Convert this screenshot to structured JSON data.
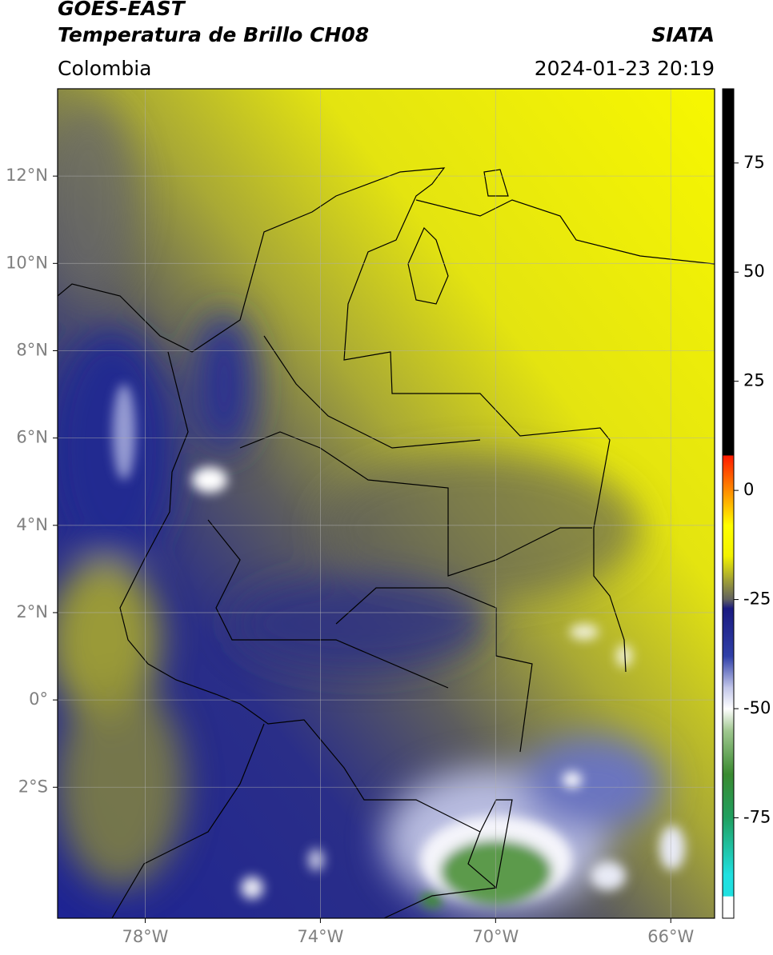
{
  "header": {
    "title": "GOES-EAST",
    "subtitle": "Temperatura de Brillo CH08",
    "region": "Colombia",
    "source": "SIATA",
    "datetime": "2024-01-23 20:19"
  },
  "map": {
    "type": "map",
    "xlim": [
      -80,
      -65
    ],
    "ylim": [
      -5,
      14
    ],
    "grid": true,
    "xticks": [
      {
        "value": -78,
        "label": "78°W"
      },
      {
        "value": -74,
        "label": "74°W"
      },
      {
        "value": -70,
        "label": "70°W"
      },
      {
        "value": -66,
        "label": "66°W"
      }
    ],
    "yticks": [
      {
        "value": 12,
        "label": "12°N"
      },
      {
        "value": 10,
        "label": "10°N"
      },
      {
        "value": 8,
        "label": "8°N"
      },
      {
        "value": 6,
        "label": "6°N"
      },
      {
        "value": 4,
        "label": "4°N"
      },
      {
        "value": 2,
        "label": "2°N"
      },
      {
        "value": 0,
        "label": "0°"
      },
      {
        "value": -2,
        "label": "2°S"
      }
    ]
  },
  "colorbar": {
    "lim": [
      -98,
      92
    ],
    "ticks": [
      75,
      50,
      25,
      0,
      -25,
      -50,
      -75
    ],
    "colormap": [
      {
        "value": 92,
        "color": "#000000"
      },
      {
        "value": 8,
        "color": "#000000"
      },
      {
        "value": 8,
        "color": "#ff1a00"
      },
      {
        "value": 0,
        "color": "#ff8c00"
      },
      {
        "value": -8,
        "color": "#ffff00"
      },
      {
        "value": -15,
        "color": "#f2f200"
      },
      {
        "value": -20,
        "color": "#a8a830"
      },
      {
        "value": -25,
        "color": "#606060"
      },
      {
        "value": -27,
        "color": "#1a1a80"
      },
      {
        "value": -38,
        "color": "#3040a8"
      },
      {
        "value": -45,
        "color": "#c0c4e8"
      },
      {
        "value": -50,
        "color": "#ffffff"
      },
      {
        "value": -55,
        "color": "#a0c890"
      },
      {
        "value": -65,
        "color": "#3a8a30"
      },
      {
        "value": -75,
        "color": "#20a060"
      },
      {
        "value": -88,
        "color": "#20e0e0"
      },
      {
        "value": -93,
        "color": "#20e0e0"
      },
      {
        "value": -93,
        "color": "#ffffff"
      },
      {
        "value": -98,
        "color": "#ffffff"
      }
    ]
  }
}
